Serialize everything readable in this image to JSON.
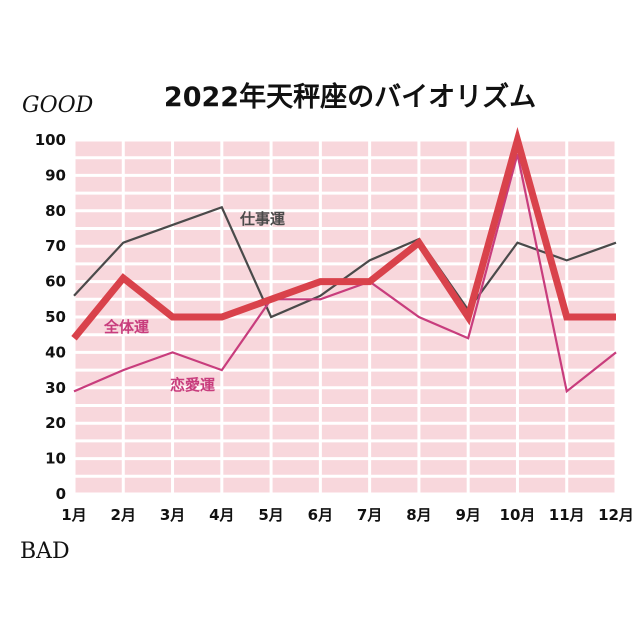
{
  "chart_data": {
    "type": "line",
    "title": "2022年天秤座のバイオリズム",
    "top_label": "GOOD",
    "bottom_label": "BAD",
    "categories": [
      "1月",
      "2月",
      "3月",
      "4月",
      "5月",
      "6月",
      "7月",
      "8月",
      "9月",
      "10月",
      "11月",
      "12月"
    ],
    "y_ticks": [
      0,
      10,
      20,
      30,
      40,
      50,
      60,
      70,
      80,
      90,
      100
    ],
    "ylim": [
      0,
      100
    ],
    "grid": true,
    "legend": "inline",
    "colors": {
      "plot_bg": "#f8d7dc",
      "grid": "#ffffff"
    },
    "series": [
      {
        "name": "仕事運",
        "color": "#4a4a4a",
        "width": 2.2,
        "values": [
          56,
          71,
          76,
          81,
          50,
          56,
          66,
          72,
          52,
          71,
          66,
          71
        ]
      },
      {
        "name": "全体運",
        "color": "#d9424b",
        "width": 7,
        "values": [
          44,
          61,
          50,
          50,
          55,
          60,
          60,
          71,
          50,
          100,
          50,
          50
        ]
      },
      {
        "name": "恋愛運",
        "color": "#c83d7d",
        "width": 2.2,
        "values": [
          29,
          35,
          40,
          35,
          55,
          55,
          60,
          50,
          44,
          96,
          29,
          40
        ]
      }
    ]
  }
}
